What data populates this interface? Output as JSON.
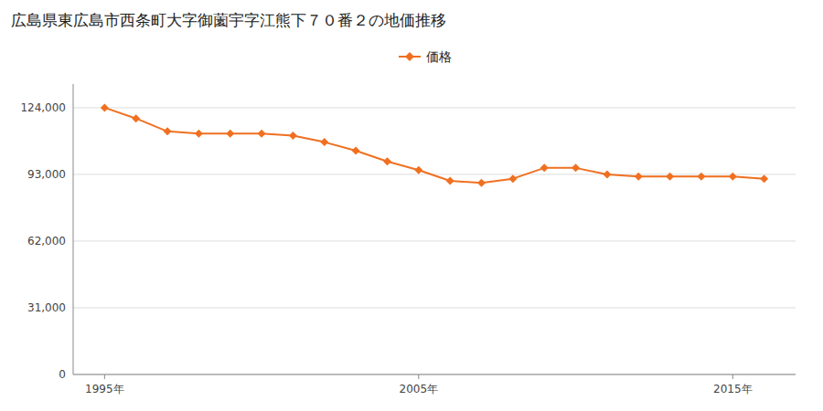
{
  "chart_data": {
    "type": "line",
    "title": "広島県東広島市西条町大字御薗宇字江熊下７０番２の地価推移",
    "x": [
      1995,
      1996,
      1997,
      1998,
      1999,
      2000,
      2001,
      2002,
      2003,
      2004,
      2005,
      2006,
      2007,
      2008,
      2009,
      2010,
      2011,
      2012,
      2013,
      2014,
      2015,
      2016
    ],
    "series": [
      {
        "name": "価格",
        "color": "#f07020",
        "marker": "diamond",
        "values": [
          124000,
          119000,
          113000,
          112000,
          112000,
          112000,
          111000,
          108000,
          104000,
          99000,
          95000,
          90000,
          89000,
          91000,
          96000,
          96000,
          93000,
          92000,
          92000,
          92000,
          92000,
          91000
        ]
      }
    ],
    "xlim": [
      1994,
      2017
    ],
    "xticks": [
      {
        "value": 1995,
        "label": "1995年"
      },
      {
        "value": 2005,
        "label": "2005年"
      },
      {
        "value": 2015,
        "label": "2015年"
      }
    ],
    "ylim": [
      0,
      135000
    ],
    "yticks": [
      0,
      {
        "value": 31000,
        "label": "31,000"
      },
      {
        "value": 62000,
        "label": "62,000"
      },
      {
        "value": 93000,
        "label": "93,000"
      },
      {
        "value": 124000,
        "label": "124,000"
      }
    ],
    "grid": true,
    "legend": "top"
  }
}
